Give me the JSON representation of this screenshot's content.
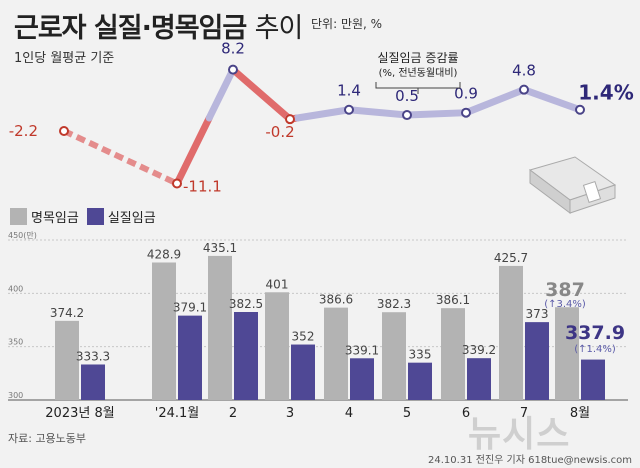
{
  "header": {
    "title": "근로자 실질·명목임금",
    "title_suffix": "추이",
    "unit_note": "단위: 만원, %",
    "per_note": "1인당 월평균 기준"
  },
  "footer": {
    "source": "자료: 고용노동부",
    "credit": "24.10.31 전진우 기자 618tue@newsis.com",
    "watermark": "뉴시스"
  },
  "colors": {
    "nominal": "#b3b3b3",
    "real": "#4f4895",
    "line": "#b8b6dc",
    "line_negative": "#e06b6b",
    "background": "#f2f2f2"
  },
  "chart_data": [
    {
      "type": "line",
      "title": "실질임금 증감률",
      "subtitle": "(%, 전년동월대비)",
      "categories": [
        "2023년 8월",
        "'24.1월",
        "2",
        "3",
        "4",
        "5",
        "6",
        "7",
        "8월"
      ],
      "values": [
        -2.2,
        -11.1,
        8.2,
        -0.2,
        1.4,
        0.5,
        0.9,
        4.8,
        1.4
      ],
      "labels": [
        "-2.2",
        "-11.1",
        "8.2",
        "-0.2",
        "1.4",
        "0.5",
        "0.9",
        "4.8",
        "1.4%"
      ],
      "gap_after_first": true
    },
    {
      "type": "bar",
      "categories": [
        "2023년 8월",
        "'24.1월",
        "2",
        "3",
        "4",
        "5",
        "6",
        "7",
        "8월"
      ],
      "ylim": [
        300,
        450
      ],
      "yticks": [
        "450(만)",
        "400",
        "350",
        "300"
      ],
      "legend": [
        "명목임금",
        "실질임금"
      ],
      "series": [
        {
          "name": "명목임금",
          "values": [
            374.2,
            428.9,
            435.1,
            401,
            386.6,
            382.3,
            386.1,
            425.7,
            387
          ],
          "labels": [
            "374.2",
            "428.9",
            "435.1",
            "401",
            "386.6",
            "382.3",
            "386.1",
            "425.7",
            "387"
          ]
        },
        {
          "name": "실질임금",
          "values": [
            333.3,
            379.1,
            382.5,
            352,
            339.1,
            335,
            339.2,
            373,
            337.9
          ],
          "labels": [
            "333.3",
            "379.1",
            "382.5",
            "352",
            "339.1",
            "335",
            "339.2",
            "373",
            "337.9"
          ]
        }
      ],
      "annotations": [
        "(↑3.4%)",
        "(↑1.4%)"
      ]
    }
  ]
}
